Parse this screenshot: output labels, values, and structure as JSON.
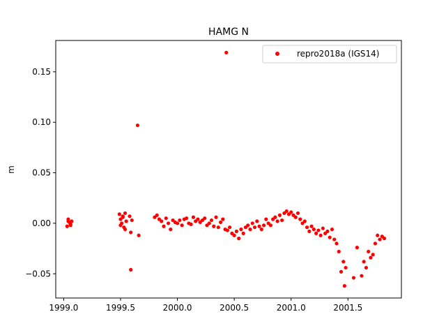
{
  "chart_data": {
    "type": "scatter",
    "title": "HAMG N",
    "xlabel": "",
    "ylabel": "m",
    "xlim": [
      1998.93,
      2001.97
    ],
    "ylim": [
      -0.074,
      0.181
    ],
    "xticks": [
      1999.0,
      1999.5,
      2000.0,
      2000.5,
      2001.0,
      2001.5
    ],
    "xtick_labels": [
      "1999.0",
      "1999.5",
      "2000.0",
      "2000.5",
      "2001.0",
      "2001.5"
    ],
    "yticks": [
      -0.05,
      0.0,
      0.05,
      0.1,
      0.15
    ],
    "ytick_labels": [
      "−0.05",
      "0.00",
      "0.05",
      "0.10",
      "0.15"
    ],
    "grid": false,
    "legend_position": "top-right",
    "series": [
      {
        "name": "repro2018a (IGS14)",
        "color": "#ff0000",
        "x": [
          1999.03,
          1999.04,
          1999.05,
          1999.06,
          1999.07,
          1999.04,
          1999.06,
          1999.49,
          1999.5,
          1999.51,
          1999.52,
          1999.53,
          1999.54,
          1999.55,
          1999.5,
          1999.52,
          1999.54,
          1999.58,
          1999.59,
          1999.6,
          1999.59,
          1999.65,
          1999.66,
          1999.8,
          1999.82,
          1999.84,
          1999.86,
          1999.88,
          1999.9,
          1999.92,
          1999.94,
          1999.96,
          1999.98,
          2000.0,
          2000.02,
          2000.04,
          2000.06,
          2000.08,
          2000.1,
          2000.12,
          2000.14,
          2000.16,
          2000.18,
          2000.2,
          2000.22,
          2000.24,
          2000.26,
          2000.28,
          2000.3,
          2000.32,
          2000.34,
          2000.36,
          2000.38,
          2000.4,
          2000.42,
          2000.44,
          2000.46,
          2000.48,
          2000.5,
          2000.52,
          2000.54,
          2000.56,
          2000.58,
          2000.6,
          2000.62,
          2000.64,
          2000.66,
          2000.68,
          2000.7,
          2000.72,
          2000.74,
          2000.76,
          2000.78,
          2000.8,
          2000.82,
          2000.84,
          2000.86,
          2000.88,
          2000.9,
          2000.92,
          2000.94,
          2000.96,
          2000.98,
          2001.0,
          2001.02,
          2001.04,
          2001.06,
          2001.08,
          2001.1,
          2001.12,
          2001.14,
          2001.16,
          2001.18,
          2001.2,
          2001.22,
          2001.24,
          2001.26,
          2001.28,
          2001.3,
          2001.32,
          2001.34,
          2001.36,
          2001.38,
          2001.4,
          2001.42,
          2001.44,
          2001.46,
          2001.47,
          2001.48,
          2001.55,
          2001.58,
          2001.62,
          2001.64,
          2001.66,
          2001.68,
          2001.7,
          2001.72,
          2001.74,
          2001.76,
          2001.78,
          2001.8,
          2001.82,
          2000.43
        ],
        "y": [
          -0.003,
          0.002,
          0.001,
          -0.001,
          0.002,
          0.004,
          -0.002,
          0.009,
          0.004,
          0.0,
          0.006,
          -0.004,
          0.01,
          0.002,
          -0.002,
          0.007,
          -0.006,
          0.007,
          -0.009,
          0.003,
          -0.046,
          0.097,
          -0.012,
          0.006,
          0.008,
          0.004,
          0.002,
          -0.003,
          0.005,
          0.0,
          -0.006,
          0.003,
          0.001,
          0.0,
          0.003,
          -0.002,
          0.004,
          0.005,
          0.0,
          -0.001,
          0.006,
          0.002,
          0.004,
          0.001,
          0.003,
          0.005,
          -0.002,
          0.0,
          0.003,
          -0.003,
          0.006,
          -0.004,
          0.001,
          0.004,
          -0.006,
          -0.007,
          -0.004,
          -0.01,
          -0.012,
          -0.008,
          -0.015,
          -0.006,
          -0.01,
          -0.004,
          -0.002,
          -0.006,
          0.0,
          -0.004,
          0.002,
          -0.003,
          -0.006,
          -0.002,
          0.004,
          0.0,
          -0.002,
          0.004,
          0.006,
          0.002,
          0.008,
          0.003,
          0.01,
          0.012,
          0.009,
          0.011,
          0.008,
          0.006,
          0.01,
          0.004,
          0.0,
          0.002,
          -0.004,
          -0.008,
          -0.003,
          -0.006,
          -0.01,
          -0.007,
          -0.012,
          -0.005,
          -0.01,
          -0.008,
          -0.014,
          -0.006,
          -0.016,
          -0.02,
          -0.028,
          -0.048,
          -0.038,
          -0.062,
          -0.044,
          -0.054,
          -0.024,
          -0.052,
          -0.038,
          -0.044,
          -0.028,
          -0.034,
          -0.031,
          -0.02,
          -0.012,
          -0.016,
          -0.013,
          -0.015,
          0.169
        ]
      }
    ]
  }
}
